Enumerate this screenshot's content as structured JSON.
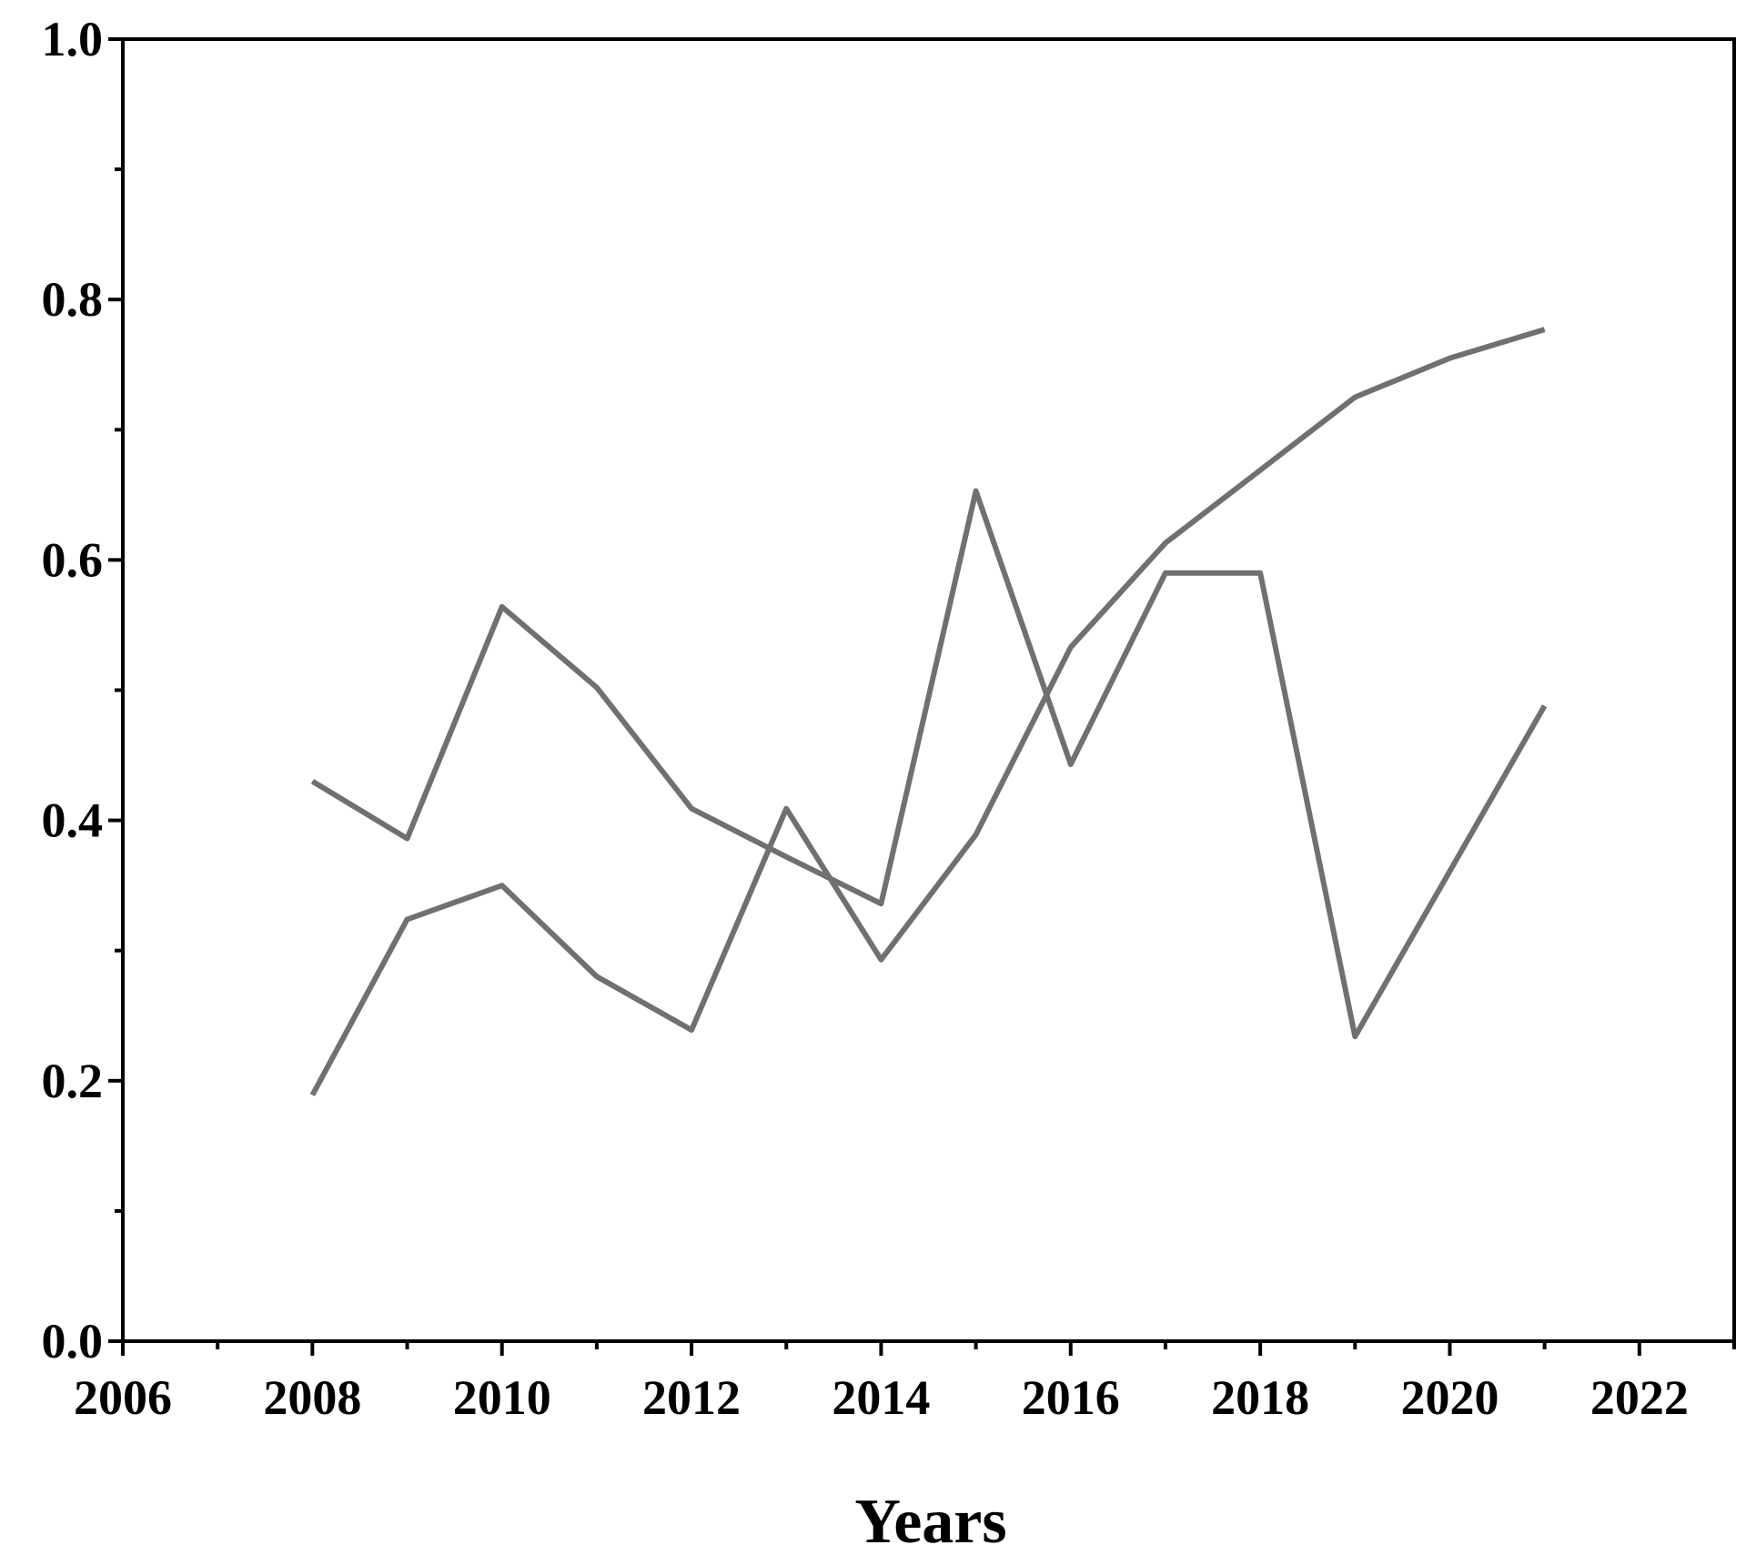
{
  "chart_data": {
    "type": "line",
    "x_label": "Years",
    "x": [
      2008,
      2009,
      2010,
      2011,
      2012,
      2013,
      2014,
      2015,
      2016,
      2017,
      2018,
      2019,
      2020,
      2021
    ],
    "series": [
      {
        "color": "#707070",
        "values": [
          0.43,
          0.386,
          0.564,
          0.502,
          0.409,
          0.372,
          0.336,
          0.653,
          0.443,
          0.59,
          0.59,
          0.234,
          0.361,
          0.488
        ]
      },
      {
        "color": "#707070",
        "values": [
          0.189,
          0.324,
          0.35,
          0.28,
          0.239,
          0.409,
          0.293,
          0.389,
          0.533,
          0.613,
          0.669,
          0.725,
          0.755,
          0.777
        ]
      }
    ],
    "xlim": [
      2006,
      2023
    ],
    "xticks": [
      2006,
      2008,
      2010,
      2012,
      2014,
      2016,
      2018,
      2020,
      2022
    ],
    "ylim": [
      0,
      1
    ],
    "yticks": [
      {
        "value": 0,
        "label": "0.0"
      },
      0.2,
      0.4,
      0.6,
      0.8,
      {
        "value": 1,
        "label": "1.0"
      }
    ],
    "grid": false
  }
}
